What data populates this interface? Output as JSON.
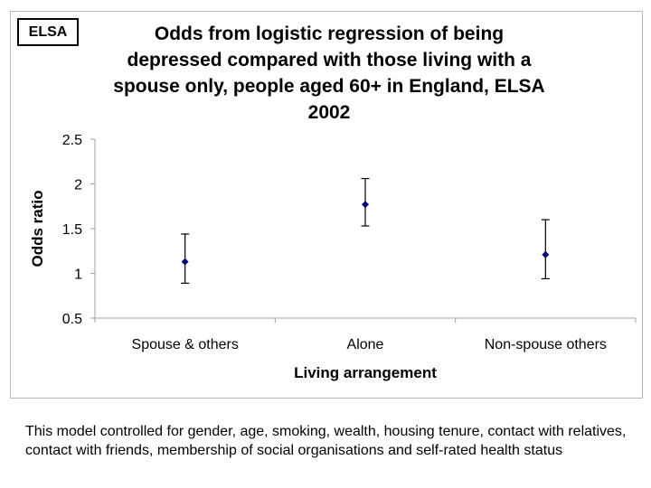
{
  "badge_label": "ELSA",
  "footnote": "This model controlled for gender, age, smoking, wealth, housing tenure, contact with relatives, contact with friends, membership of social organisations and self-rated health status",
  "chart_data": {
    "type": "scatter",
    "title_lines": [
      "Odds from logistic regression of being",
      "depressed compared with those living with a",
      "spouse only, people aged 60+ in England, ELSA",
      "2002"
    ],
    "xlabel": "Living arrangement",
    "ylabel": "Odds ratio",
    "categories": [
      "Spouse & others",
      "Alone",
      "Non-spouse others"
    ],
    "values": [
      1.13,
      1.77,
      1.21
    ],
    "error_low": [
      0.89,
      1.53,
      0.94
    ],
    "error_high": [
      1.44,
      2.06,
      1.6
    ],
    "ylim": [
      0.5,
      2.5
    ],
    "yticks": [
      "0.5",
      "1",
      "1.5",
      "2",
      "2.5"
    ],
    "grid": false,
    "legend": "none",
    "marker": "diamond",
    "colors": {
      "point": "#000080",
      "errorbar": "#000000",
      "axis": "#a0a0a0"
    }
  }
}
